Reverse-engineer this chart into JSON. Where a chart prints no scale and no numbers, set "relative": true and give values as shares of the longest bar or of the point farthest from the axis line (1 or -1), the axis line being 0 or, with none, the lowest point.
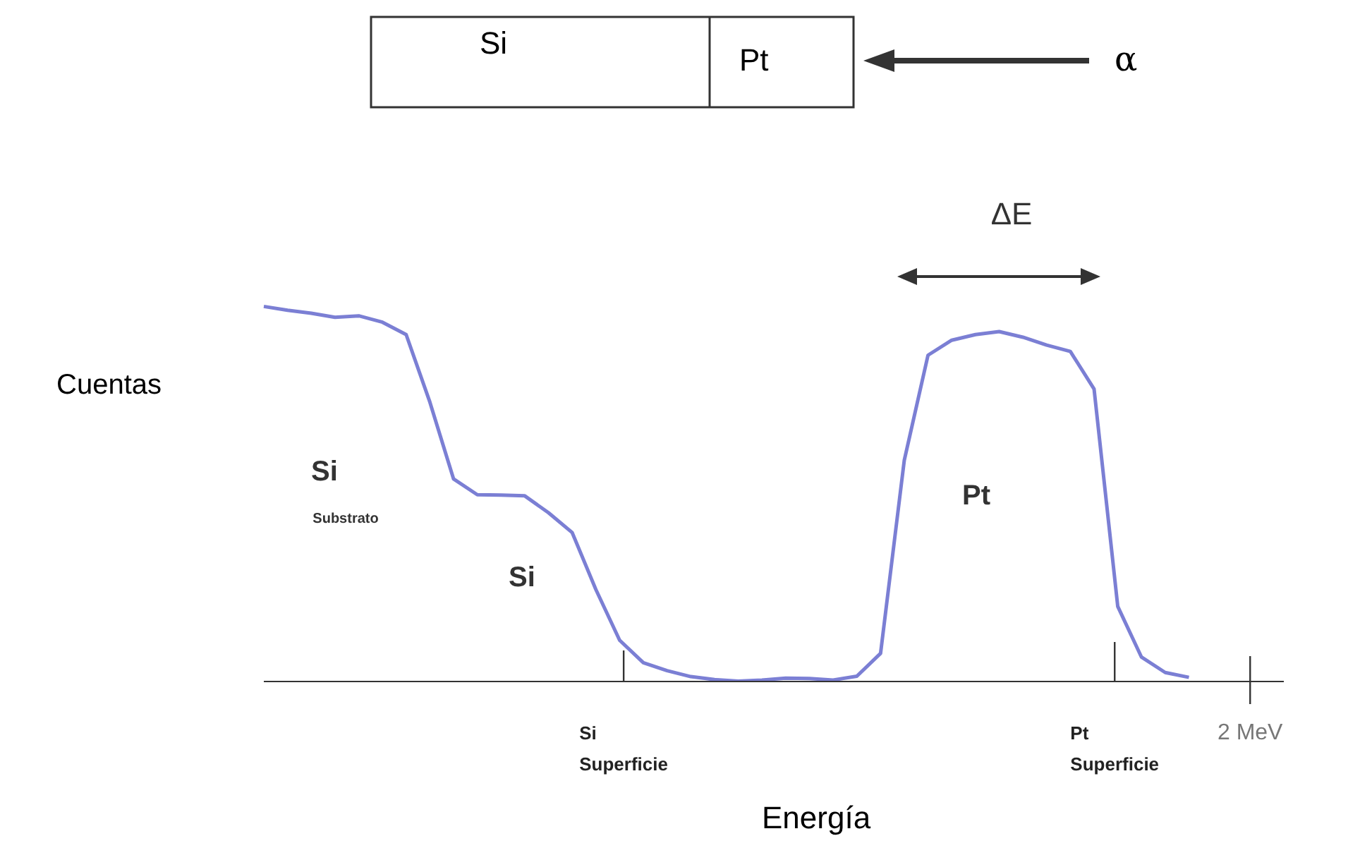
{
  "chart_data": {
    "type": "line",
    "relative": true,
    "xlabel": "Energía",
    "ylabel": "Cuentas",
    "color": "#7b7fd4",
    "marker": "none",
    "categories": [
      null,
      null,
      null,
      null,
      null,
      null,
      null,
      null,
      null,
      null,
      null,
      null,
      null,
      null,
      null,
      null,
      null,
      null,
      null,
      null,
      null,
      null,
      null,
      null,
      null,
      null,
      null,
      null,
      null,
      null,
      null,
      null,
      null,
      null,
      null,
      null,
      null,
      null,
      null,
      null,
      null,
      null,
      null,
      null
    ],
    "values": [
      1,
      0.99,
      0.982,
      0.971,
      0.975,
      0.958,
      0.925,
      0.745,
      0.54,
      0.498,
      0.497,
      0.495,
      0.45,
      0.397,
      0.245,
      0.11,
      0.05,
      0.029,
      0.013,
      0.005,
      0.001,
      0.004,
      0.009,
      0.008,
      0.004,
      0.014,
      0.075,
      0.59,
      0.87,
      0.91,
      0.925,
      0.933,
      0.918,
      0.897,
      0.88,
      0.78,
      0.2,
      0.065,
      0.024,
      0.011,
      null,
      null,
      null,
      null
    ],
    "annotations": [
      "Si",
      "Pt",
      "α",
      "ΔE",
      "Si",
      "Substrato",
      "Si",
      "Pt",
      "Si Superficie",
      "Pt Superficie",
      "2 MeV"
    ]
  }
}
